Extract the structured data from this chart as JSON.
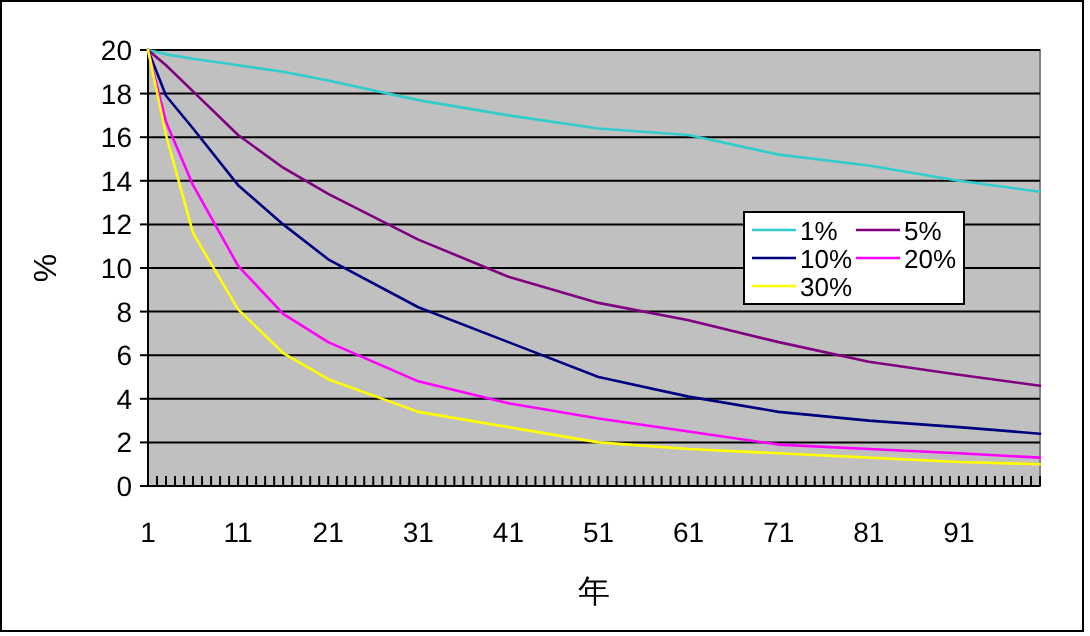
{
  "chart_data": {
    "type": "line",
    "xlabel": "年",
    "ylabel": "%",
    "x": [
      1,
      3,
      6,
      11,
      16,
      21,
      31,
      41,
      51,
      61,
      71,
      81,
      91,
      100
    ],
    "series": [
      {
        "name": "1%",
        "color": "#33cccc",
        "values": [
          20,
          19.8,
          19.6,
          19.3,
          19.0,
          18.6,
          17.7,
          17.0,
          16.4,
          16.1,
          15.2,
          14.7,
          14.0,
          13.5
        ]
      },
      {
        "name": "5%",
        "color": "#800080",
        "values": [
          20,
          19.3,
          18.1,
          16.1,
          14.6,
          13.4,
          11.3,
          9.6,
          8.4,
          7.6,
          6.6,
          5.7,
          5.1,
          4.6
        ]
      },
      {
        "name": "10%",
        "color": "#000080",
        "values": [
          20,
          17.9,
          16.4,
          13.8,
          12.0,
          10.4,
          8.2,
          6.6,
          5.0,
          4.1,
          3.4,
          3.0,
          2.7,
          2.4
        ]
      },
      {
        "name": "20%",
        "color": "#ff00ff",
        "values": [
          20,
          16.7,
          13.8,
          10.1,
          7.9,
          6.6,
          4.8,
          3.8,
          3.1,
          2.5,
          1.9,
          1.7,
          1.5,
          1.3
        ]
      },
      {
        "name": "30%",
        "color": "#ffff00",
        "values": [
          20,
          16.1,
          11.6,
          8.1,
          6.1,
          4.9,
          3.4,
          2.7,
          2.0,
          1.7,
          1.5,
          1.3,
          1.1,
          1.0
        ]
      }
    ],
    "xlim": [
      1,
      100
    ],
    "xticks": [
      1,
      {
        "value": 2,
        "label": null
      },
      {
        "value": 3,
        "label": null
      },
      {
        "value": 4,
        "label": null
      },
      {
        "value": 5,
        "label": null
      },
      {
        "value": 6,
        "label": null
      },
      {
        "value": 7,
        "label": null
      },
      {
        "value": 8,
        "label": null
      },
      {
        "value": 9,
        "label": null
      },
      {
        "value": 10,
        "label": null
      },
      11,
      {
        "value": 12,
        "label": null
      },
      {
        "value": 13,
        "label": null
      },
      {
        "value": 14,
        "label": null
      },
      {
        "value": 15,
        "label": null
      },
      {
        "value": 16,
        "label": null
      },
      {
        "value": 17,
        "label": null
      },
      {
        "value": 18,
        "label": null
      },
      {
        "value": 19,
        "label": null
      },
      {
        "value": 20,
        "label": null
      },
      21,
      {
        "value": 22,
        "label": null
      },
      {
        "value": 23,
        "label": null
      },
      {
        "value": 24,
        "label": null
      },
      {
        "value": 25,
        "label": null
      },
      {
        "value": 26,
        "label": null
      },
      {
        "value": 27,
        "label": null
      },
      {
        "value": 28,
        "label": null
      },
      {
        "value": 29,
        "label": null
      },
      {
        "value": 30,
        "label": null
      },
      31,
      {
        "value": 32,
        "label": null
      },
      {
        "value": 33,
        "label": null
      },
      {
        "value": 34,
        "label": null
      },
      {
        "value": 35,
        "label": null
      },
      {
        "value": 36,
        "label": null
      },
      {
        "value": 37,
        "label": null
      },
      {
        "value": 38,
        "label": null
      },
      {
        "value": 39,
        "label": null
      },
      {
        "value": 40,
        "label": null
      },
      41,
      {
        "value": 42,
        "label": null
      },
      {
        "value": 43,
        "label": null
      },
      {
        "value": 44,
        "label": null
      },
      {
        "value": 45,
        "label": null
      },
      {
        "value": 46,
        "label": null
      },
      {
        "value": 47,
        "label": null
      },
      {
        "value": 48,
        "label": null
      },
      {
        "value": 49,
        "label": null
      },
      {
        "value": 50,
        "label": null
      },
      51,
      {
        "value": 52,
        "label": null
      },
      {
        "value": 53,
        "label": null
      },
      {
        "value": 54,
        "label": null
      },
      {
        "value": 55,
        "label": null
      },
      {
        "value": 56,
        "label": null
      },
      {
        "value": 57,
        "label": null
      },
      {
        "value": 58,
        "label": null
      },
      {
        "value": 59,
        "label": null
      },
      {
        "value": 60,
        "label": null
      },
      61,
      {
        "value": 62,
        "label": null
      },
      {
        "value": 63,
        "label": null
      },
      {
        "value": 64,
        "label": null
      },
      {
        "value": 65,
        "label": null
      },
      {
        "value": 66,
        "label": null
      },
      {
        "value": 67,
        "label": null
      },
      {
        "value": 68,
        "label": null
      },
      {
        "value": 69,
        "label": null
      },
      {
        "value": 70,
        "label": null
      },
      71,
      {
        "value": 72,
        "label": null
      },
      {
        "value": 73,
        "label": null
      },
      {
        "value": 74,
        "label": null
      },
      {
        "value": 75,
        "label": null
      },
      {
        "value": 76,
        "label": null
      },
      {
        "value": 77,
        "label": null
      },
      {
        "value": 78,
        "label": null
      },
      {
        "value": 79,
        "label": null
      },
      {
        "value": 80,
        "label": null
      },
      81,
      {
        "value": 82,
        "label": null
      },
      {
        "value": 83,
        "label": null
      },
      {
        "value": 84,
        "label": null
      },
      {
        "value": 85,
        "label": null
      },
      {
        "value": 86,
        "label": null
      },
      {
        "value": 87,
        "label": null
      },
      {
        "value": 88,
        "label": null
      },
      {
        "value": 89,
        "label": null
      },
      {
        "value": 90,
        "label": null
      },
      91,
      {
        "value": 92,
        "label": null
      },
      {
        "value": 93,
        "label": null
      },
      {
        "value": 94,
        "label": null
      },
      {
        "value": 95,
        "label": null
      },
      {
        "value": 96,
        "label": null
      },
      {
        "value": 97,
        "label": null
      },
      {
        "value": 98,
        "label": null
      },
      {
        "value": 99,
        "label": null
      },
      {
        "value": 100,
        "label": null
      }
    ],
    "ylim": [
      0,
      20
    ],
    "yticks": [
      0,
      2,
      4,
      6,
      8,
      10,
      12,
      14,
      16,
      18,
      20
    ],
    "grid": "y",
    "legend": "right",
    "marker": "none",
    "line_style": "solid"
  }
}
